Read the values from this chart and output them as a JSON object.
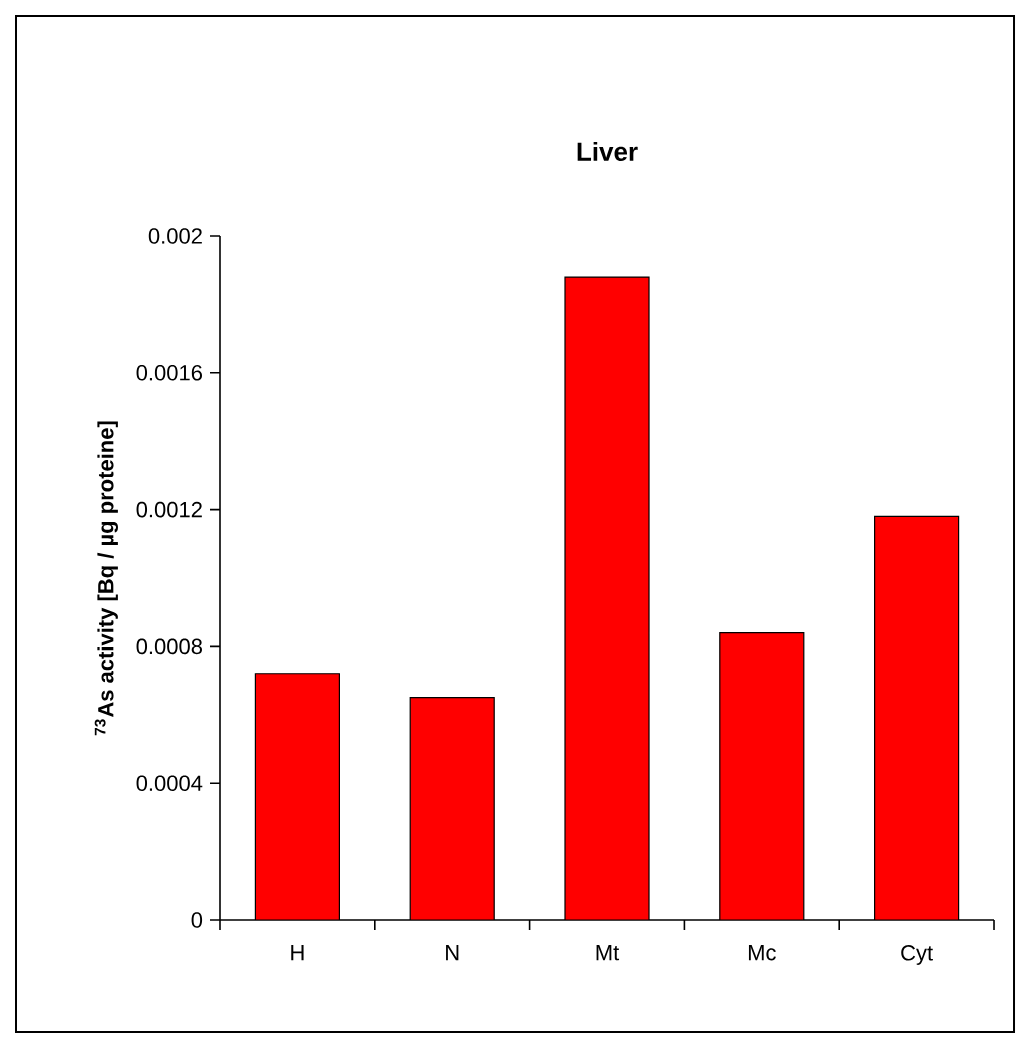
{
  "chart_data": {
    "type": "bar",
    "title": "Liver",
    "ylabel": "$^{73}$As activity [Bq / µg proteine]",
    "categories": [
      "H",
      "N",
      "Mt",
      "Mc",
      "Cyt"
    ],
    "values": [
      0.00072,
      0.00065,
      0.00188,
      0.00084,
      0.00118
    ],
    "color": "#ff0000",
    "ylim": [
      0,
      0.002
    ],
    "yticks": [
      0,
      0.0004,
      0.0008,
      0.0012,
      0.0016,
      0.002
    ]
  }
}
